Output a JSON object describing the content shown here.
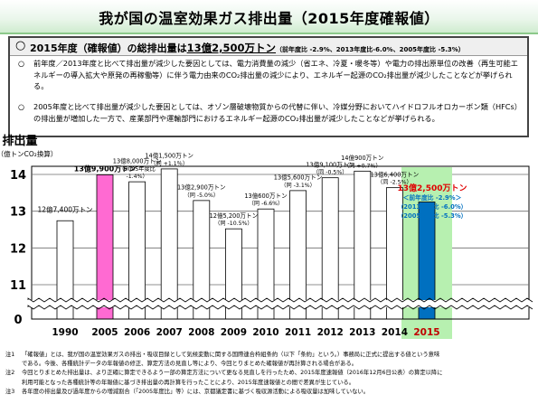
{
  "title": "我が国の温室効果ガス排出量（2015年度確報値）",
  "summary": {
    "head_circle": "○",
    "head_text": "2015年度（確報値）の総排出量は",
    "head_total": "13億2,500万トン",
    "head_note": "（前年度比 -2.9%、2013年度比-6.0%、2005年度比 -5.3%）",
    "bullets": [
      {
        "mark": "○",
        "text": "前年度／2013年度と比べて排出量が減少した要因としては、電力消費量の減少（省エネ、冷夏・暖冬等）や電力の排出原単位の改善（再生可能エネルギーの導入拡大や原発の再稼働等）に伴う電力由来のCO₂排出量の減少により、エネルギー起源のCO₂排出量が減少したことなどが挙げられる。"
      },
      {
        "mark": "○",
        "text": "2005年度と比べて排出量が減少した要因としては、オゾン層破壊物質からの代替に伴い、冷媒分野においてハイドロフルオロカーボン類（HFCs）の排出量が増加した一方で、産業部門や運輸部門におけるエネルギー起源のCO₂排出量が減少したことなどが挙げられる。"
      }
    ]
  },
  "chart_data": {
    "type": "bar",
    "ylabel": "排出量",
    "yunit": "（億トンCO₂換算）",
    "ylim": [
      0,
      14.5
    ],
    "yticks": [
      "0",
      "11",
      "12",
      "13",
      "14"
    ],
    "categories": [
      "1990",
      "2005",
      "2006",
      "2007",
      "2008",
      "2009",
      "2010",
      "2011",
      "2012",
      "2013",
      "2014",
      "2015"
    ],
    "values": [
      12.74,
      13.99,
      13.8,
      14.15,
      13.29,
      12.52,
      13.06,
      13.56,
      13.91,
      14.09,
      13.64,
      13.25
    ],
    "bar_colors": [
      "#ffffff",
      "#ff6ad2",
      "#ffffff",
      "#ffffff",
      "#ffffff",
      "#ffffff",
      "#ffffff",
      "#ffffff",
      "#ffffff",
      "#ffffff",
      "#ffffff",
      "#0070c0"
    ],
    "bar_labels": [
      [
        "12億7,400万トン"
      ],
      [
        "13億9,900万トン"
      ],
      [
        "13億8,000万トン",
        "（2005年度比",
        "-1.4%）"
      ],
      [
        "14億1,500万トン",
        "（同 +1.1％）"
      ],
      [
        "13億2,900万トン",
        "（同 -5.0%）"
      ],
      [
        "12億5,200万トン",
        "（同 -10.5%）"
      ],
      [
        "13億600万トン",
        "（同 -6.6%）"
      ],
      [
        "13億5,600万トン",
        "（同 -3.1%）"
      ],
      [
        "13億9,100万トン",
        "（同 -0.5%）"
      ],
      [
        "14億900万トン",
        "（同 +0.7%）"
      ],
      [
        "13億6,400万トン",
        "（同 -2.5%）"
      ],
      [
        "13億2,500万トン",
        "＜前年度比 -2.9%＞",
        "（2013年度比 -6.0%）",
        "（2005年度比 -5.3%）"
      ]
    ],
    "highlight_color": "#b7f0b0"
  },
  "notes": [
    {
      "label": "注1",
      "lines": [
        "「確報値」とは、我が国の温室効果ガスの排出・吸収目録として気候変動に関する国際連合枠組条約（以下「条約」という。）事務局に正式に提出する値という意味",
        "である。今後、各種統計データの年報値の修正、算定方法の見直し等により、今回とりまとめた確報値が再計算される場合がある。"
      ]
    },
    {
      "label": "注2",
      "lines": [
        "今回とりまとめた排出量は、より正確に算定できるよう一部の算定方法について更なる見直しを行ったため、2015年度速報値（2016年12月6日公表）の算定以降に",
        "利用可能となった各種統計等の年報値に基づき排出量の再計算を行ったことにより、2015年度速報値との間で差異が生じている。"
      ]
    },
    {
      "label": "注3",
      "lines": [
        "各年度の排出量及び過年度からの増減割合（「2005年度比」等）には、京都議定書に基づく吸収源活動による吸収量は加味していない。"
      ]
    }
  ]
}
